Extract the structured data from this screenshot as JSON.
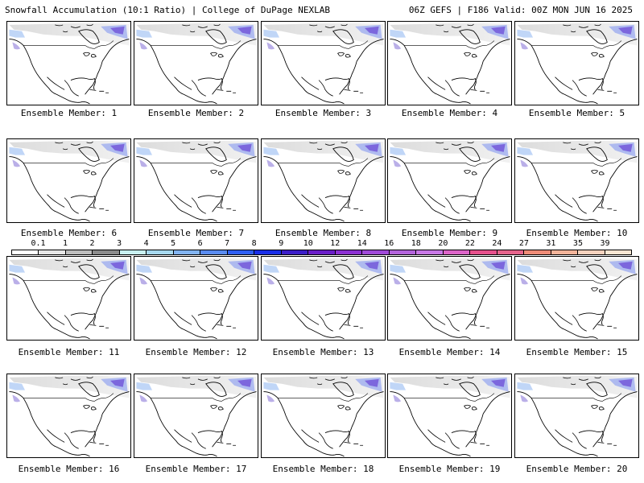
{
  "header": {
    "left": "Snowfall Accumulation (10:1 Ratio) | College of DuPage NEXLAB",
    "right": "06Z GEFS | F186 Valid: 00Z MON JUN 16 2025"
  },
  "panels": [
    {
      "caption": "Ensemble Member: 1"
    },
    {
      "caption": "Ensemble Member: 2"
    },
    {
      "caption": "Ensemble Member: 3"
    },
    {
      "caption": "Ensemble Member: 4"
    },
    {
      "caption": "Ensemble Member: 5"
    },
    {
      "caption": "Ensemble Member: 6"
    },
    {
      "caption": "Ensemble Member: 7"
    },
    {
      "caption": "Ensemble Member: 8"
    },
    {
      "caption": "Ensemble Member: 9"
    },
    {
      "caption": "Ensemble Member: 10"
    },
    {
      "caption": "Ensemble Member: 11"
    },
    {
      "caption": "Ensemble Member: 12"
    },
    {
      "caption": "Ensemble Member: 13"
    },
    {
      "caption": "Ensemble Member: 14"
    },
    {
      "caption": "Ensemble Member: 15"
    },
    {
      "caption": "Ensemble Member: 16"
    },
    {
      "caption": "Ensemble Member: 17"
    },
    {
      "caption": "Ensemble Member: 18"
    },
    {
      "caption": "Ensemble Member: 19"
    },
    {
      "caption": "Ensemble Member: 20"
    }
  ],
  "scale": {
    "labels": [
      "0.1",
      "1",
      "2",
      "3",
      "4",
      "5",
      "6",
      "7",
      "8",
      "9",
      "10",
      "12",
      "14",
      "16",
      "18",
      "20",
      "22",
      "24",
      "27",
      "31",
      "35",
      "39"
    ],
    "colors": [
      "#ffffff",
      "#e6e6e6",
      "#bdbdbd",
      "#8c8c8c",
      "#c8f0f0",
      "#a6d8ee",
      "#82b4f0",
      "#5a8cf0",
      "#2f5ff2",
      "#1a2fe8",
      "#3c1ec8",
      "#6a1ec8",
      "#8c30d2",
      "#a04ad8",
      "#b464dc",
      "#c878e6",
      "#dc64c8",
      "#e6508c",
      "#e6648c",
      "#ee8c78",
      "#f2b49a",
      "#f6d2be",
      "#fae6d2"
    ]
  }
}
